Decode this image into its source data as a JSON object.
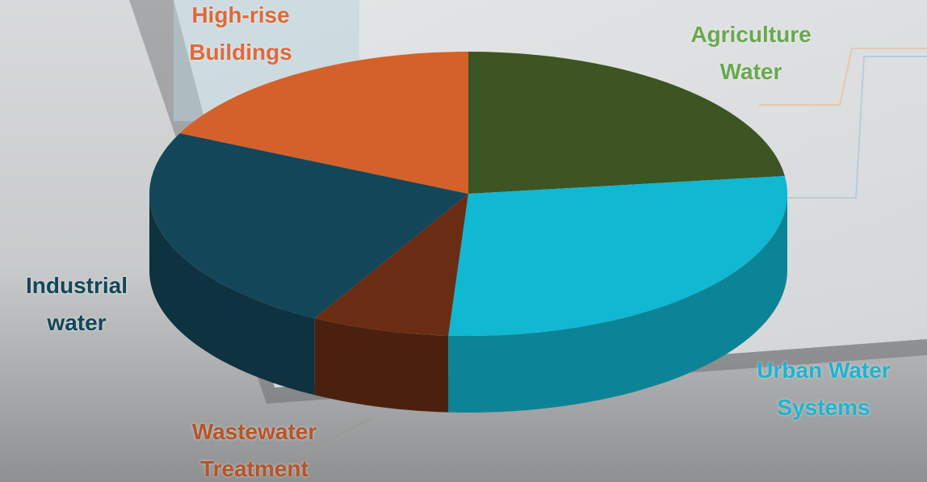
{
  "chart_data": {
    "type": "pie",
    "categories": [
      "Agriculture Water",
      "Urban Water Systems",
      "Wastewater Treatment",
      "Industrial water",
      "High-rise Buildings"
    ],
    "values": [
      23,
      28,
      7,
      24,
      18
    ],
    "colors": [
      "#3c5523",
      "#10b8d2",
      "#6a2d14",
      "#134658",
      "#d4612b"
    ]
  }
}
